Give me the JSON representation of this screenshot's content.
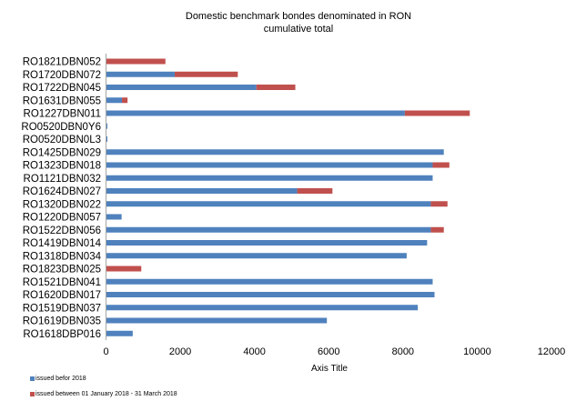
{
  "chart_data": {
    "type": "bar",
    "orientation": "horizontal",
    "stacked": true,
    "title": "Domestic benchmark bondes denominated in RON",
    "subtitle": "cumulative total",
    "xlabel": "Axis Title",
    "ylabel": "",
    "xlim": [
      0,
      12000
    ],
    "xticks": [
      "0",
      "2000",
      "4000",
      "6000",
      "8000",
      "10000",
      "12000"
    ],
    "grid": false,
    "legend_position": "bottom-left",
    "categories": [
      "RO1821DBN052",
      "RO1720DBN072",
      "RO1722DBN045",
      "RO1631DBN055",
      "RO1227DBN011",
      "RO0520DBN0Y6",
      "RO0520DBN0L3",
      "RO1425DBN029",
      "RO1323DBN018",
      "RO1121DBN032",
      "RO1624DBN027",
      "RO1320DBN022",
      "RO1220DBN057",
      "RO1522DBN056",
      "RO1419DBN014",
      "RO1318DBN034",
      "RO1823DBN025",
      "RO1521DBN041",
      "RO1620DBN017",
      "RO1519DBN037",
      "RO1619DBN035",
      "RO1618DBP016"
    ],
    "series": [
      {
        "name": "issued befor 2018",
        "color": "#4F81BD",
        "values": [
          0,
          1850,
          4050,
          430,
          8050,
          30,
          30,
          9100,
          8800,
          8800,
          5150,
          8750,
          420,
          8750,
          8650,
          8100,
          0,
          8800,
          8850,
          8400,
          5950,
          720
        ]
      },
      {
        "name": "issued between 01 January 2018 - 31 March 2018",
        "color": "#C0504D",
        "values": [
          1600,
          1700,
          1050,
          150,
          1750,
          0,
          0,
          0,
          450,
          0,
          950,
          450,
          0,
          350,
          0,
          0,
          950,
          0,
          0,
          0,
          0,
          0
        ]
      }
    ]
  }
}
